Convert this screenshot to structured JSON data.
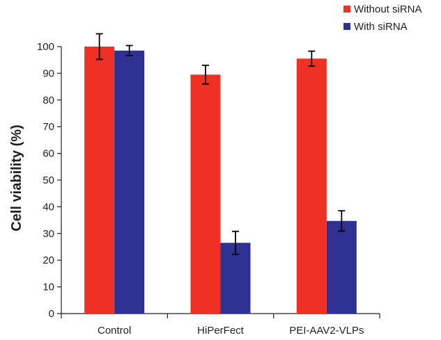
{
  "chart_data": {
    "type": "bar",
    "title": "",
    "xlabel": "",
    "ylabel": "Cell viability (%)",
    "ylim": [
      0,
      100
    ],
    "yticks": [
      "0",
      "10",
      "20",
      "30",
      "40",
      "50",
      "60",
      "70",
      "80",
      "90",
      "100"
    ],
    "categories": [
      "Control",
      "HiPerFect",
      "PEI-AAV2-VLPs"
    ],
    "series": [
      {
        "name": "Without siRNA",
        "color": "#ee3124",
        "values": [
          100,
          89.5,
          95.5
        ],
        "errors": [
          4.8,
          3.5,
          2.8
        ]
      },
      {
        "name": "With siRNA",
        "color": "#2e3192",
        "values": [
          98.5,
          26.5,
          34.7
        ],
        "errors": [
          1.9,
          4.3,
          3.8
        ]
      }
    ],
    "legend_position": "top-right",
    "grid": false
  }
}
